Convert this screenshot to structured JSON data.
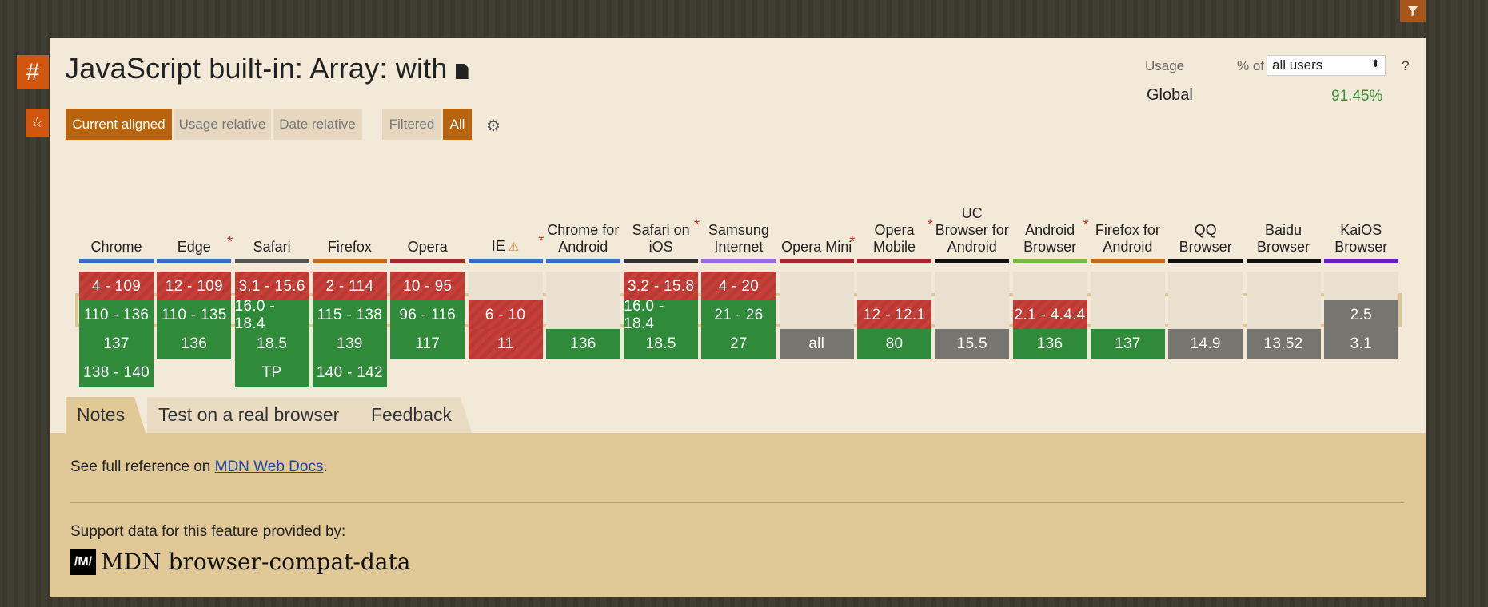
{
  "ui": {
    "filter_icon": "filter-icon",
    "hash_label": "#",
    "star_label": "☆",
    "title": "JavaScript built-in: Array: with",
    "usage": {
      "label": "Usage",
      "percent_of": "% of",
      "select_value": "all users",
      "help": "?",
      "global_label": "Global",
      "global_value": "91.45%"
    },
    "view_buttons": [
      "Current aligned",
      "Usage relative",
      "Date relative"
    ],
    "filter_buttons": [
      "Filtered",
      "All"
    ],
    "settings_icon": "gear-icon",
    "colors": {
      "supported": "#2f8a3a",
      "unsupported": "#c44038",
      "unknown": "#77756f",
      "accent": "#b8640e"
    }
  },
  "browsers": [
    {
      "name": "Chrome",
      "bar": "#3a6bc4",
      "asterisk": false,
      "cells": [
        [
          "r",
          "4 - 109"
        ],
        [
          "g",
          "110 - 136"
        ],
        [
          "g",
          "137"
        ],
        [
          "g",
          "138 - 140"
        ]
      ]
    },
    {
      "name": "Edge",
      "bar": "#3a6bc4",
      "asterisk": true,
      "cells": [
        [
          "r",
          "12 - 109"
        ],
        [
          "g",
          "110 - 135"
        ],
        [
          "g",
          "136"
        ],
        [
          "n",
          ""
        ]
      ]
    },
    {
      "name": "Safari",
      "bar": "#555555",
      "asterisk": false,
      "cells": [
        [
          "r",
          "3.1 - 15.6"
        ],
        [
          "g",
          "16.0 - 18.4"
        ],
        [
          "g",
          "18.5"
        ],
        [
          "g",
          "TP"
        ]
      ]
    },
    {
      "name": "Firefox",
      "bar": "#c06a1b",
      "asterisk": false,
      "cells": [
        [
          "r",
          "2 - 114"
        ],
        [
          "g",
          "115 - 138"
        ],
        [
          "g",
          "139"
        ],
        [
          "g",
          "140 - 142"
        ]
      ]
    },
    {
      "name": "Opera",
      "bar": "#a12a2a",
      "asterisk": false,
      "cells": [
        [
          "r",
          "10 - 95"
        ],
        [
          "g",
          "96 - 116"
        ],
        [
          "g",
          "117"
        ],
        [
          "n",
          ""
        ]
      ]
    },
    {
      "name": "IE",
      "bar": "#3a6bc4",
      "asterisk": true,
      "warn": "⚠",
      "cells": [
        [
          "e",
          ""
        ],
        [
          "r",
          "6 - 10"
        ],
        [
          "r",
          "11"
        ],
        [
          "n",
          ""
        ]
      ]
    },
    {
      "name": "Chrome for Android",
      "bar": "#3a6bc4",
      "asterisk": false,
      "cells": [
        [
          "e",
          ""
        ],
        [
          "e",
          ""
        ],
        [
          "g",
          "136"
        ],
        [
          "n",
          ""
        ]
      ]
    },
    {
      "name": "Safari on iOS",
      "bar": "#333333",
      "asterisk": true,
      "cells": [
        [
          "r",
          "3.2 - 15.8"
        ],
        [
          "g",
          "16.0 - 18.4"
        ],
        [
          "g",
          "18.5"
        ],
        [
          "n",
          ""
        ]
      ]
    },
    {
      "name": "Samsung Internet",
      "bar": "#9a6ae0",
      "asterisk": false,
      "cells": [
        [
          "r",
          "4 - 20"
        ],
        [
          "g",
          "21 - 26"
        ],
        [
          "g",
          "27"
        ],
        [
          "n",
          ""
        ]
      ]
    },
    {
      "name": "Opera Mini",
      "bar": "#a12a2a",
      "asterisk": true,
      "cells": [
        [
          "e",
          ""
        ],
        [
          "e",
          ""
        ],
        [
          "y",
          "all"
        ],
        [
          "n",
          ""
        ]
      ]
    },
    {
      "name": "Opera Mobile",
      "bar": "#a12a2a",
      "asterisk": true,
      "cells": [
        [
          "e",
          ""
        ],
        [
          "r",
          "12 - 12.1"
        ],
        [
          "g",
          "80"
        ],
        [
          "n",
          ""
        ]
      ]
    },
    {
      "name": "UC Browser for Android",
      "bar": "#111111",
      "asterisk": false,
      "cells": [
        [
          "e",
          ""
        ],
        [
          "e",
          ""
        ],
        [
          "y",
          "15.5"
        ],
        [
          "n",
          ""
        ]
      ]
    },
    {
      "name": "Android Browser",
      "bar": "#7ab648",
      "asterisk": true,
      "cells": [
        [
          "e",
          ""
        ],
        [
          "r",
          "2.1 - 4.4.4"
        ],
        [
          "g",
          "136"
        ],
        [
          "n",
          ""
        ]
      ]
    },
    {
      "name": "Firefox for Android",
      "bar": "#c06a1b",
      "asterisk": false,
      "cells": [
        [
          "e",
          ""
        ],
        [
          "e",
          ""
        ],
        [
          "g",
          "137"
        ],
        [
          "n",
          ""
        ]
      ]
    },
    {
      "name": "QQ Browser",
      "bar": "#111111",
      "asterisk": false,
      "cells": [
        [
          "e",
          ""
        ],
        [
          "e",
          ""
        ],
        [
          "y",
          "14.9"
        ],
        [
          "n",
          ""
        ]
      ]
    },
    {
      "name": "Baidu Browser",
      "bar": "#111111",
      "asterisk": false,
      "cells": [
        [
          "e",
          ""
        ],
        [
          "e",
          ""
        ],
        [
          "y",
          "13.52"
        ],
        [
          "n",
          ""
        ]
      ]
    },
    {
      "name": "KaiOS Browser",
      "bar": "#6a1cc4",
      "asterisk": false,
      "cells": [
        [
          "e",
          ""
        ],
        [
          "y",
          "2.5"
        ],
        [
          "y",
          "3.1"
        ],
        [
          "n",
          ""
        ]
      ]
    }
  ],
  "tabs": [
    "Notes",
    "Test on a real browser",
    "Feedback"
  ],
  "notes": {
    "prefix": "See full reference on ",
    "link": "MDN Web Docs",
    "suffix": ".",
    "provided_by": "Support data for this feature provided by:",
    "mdn_logo": "/M/",
    "mdn_name": "MDN browser-compat-data"
  }
}
